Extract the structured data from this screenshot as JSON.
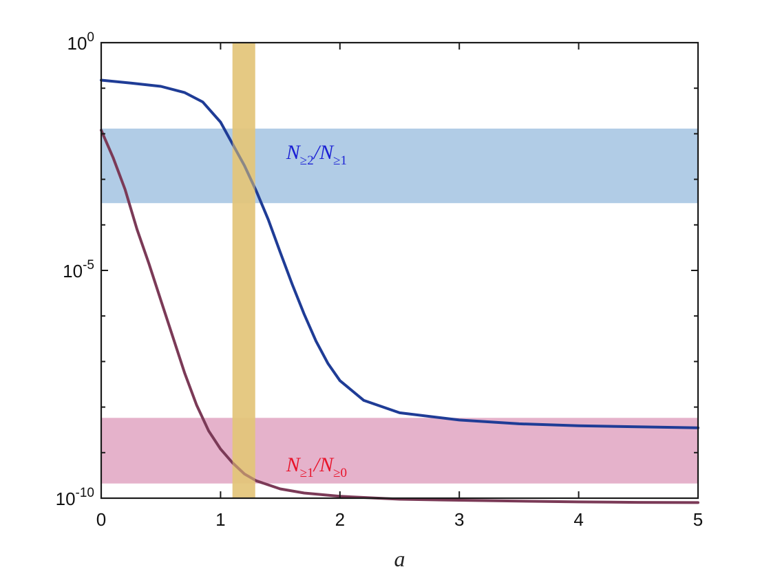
{
  "chart_data": {
    "type": "line",
    "xlabel": "a",
    "ylabel": "",
    "xlim": [
      0,
      5
    ],
    "ylim": [
      1e-10,
      1
    ],
    "yscale": "log",
    "grid": false,
    "x_ticks": [
      {
        "value": 0,
        "label": "0"
      },
      {
        "value": 1,
        "label": "1"
      },
      {
        "value": 2,
        "label": "2"
      },
      {
        "value": 3,
        "label": "3"
      },
      {
        "value": 4,
        "label": "4"
      },
      {
        "value": 5,
        "label": "5"
      }
    ],
    "y_ticks": [
      {
        "value": 1,
        "base": "10",
        "exp": "0"
      },
      {
        "value": 1e-05,
        "base": "10",
        "exp": "-5"
      },
      {
        "value": 1e-10,
        "base": "10",
        "exp": "-10"
      }
    ],
    "series": [
      {
        "color": "#1f3c96",
        "x": [
          0,
          0.25,
          0.5,
          0.7,
          0.85,
          1.0,
          1.1,
          1.2,
          1.3,
          1.4,
          1.5,
          1.6,
          1.7,
          1.8,
          1.9,
          2.0,
          2.2,
          2.5,
          3.0,
          3.5,
          4.0,
          5.0
        ],
        "y": [
          0.15,
          0.13,
          0.11,
          0.08,
          0.05,
          0.018,
          0.006,
          0.002,
          0.00055,
          0.00013,
          2.5e-05,
          5e-06,
          1.1e-06,
          2.8e-07,
          9e-08,
          3.8e-08,
          1.4e-08,
          7.5e-09,
          5.2e-09,
          4.3e-09,
          3.9e-09,
          3.5e-09
        ]
      },
      {
        "color": "#7b3a57",
        "x": [
          0,
          0.1,
          0.2,
          0.3,
          0.4,
          0.5,
          0.6,
          0.7,
          0.8,
          0.9,
          1.0,
          1.1,
          1.2,
          1.3,
          1.5,
          1.7,
          2.0,
          2.5,
          3.0,
          3.5,
          4.0,
          4.5,
          5.0
        ],
        "y": [
          0.012,
          0.003,
          0.0006,
          8e-05,
          1.4e-05,
          2.2e-06,
          3.5e-07,
          5.5e-08,
          1.1e-08,
          3e-09,
          1.2e-09,
          6e-10,
          3.4e-10,
          2.4e-10,
          1.6e-10,
          1.3e-10,
          1.1e-10,
          9.5e-11,
          9e-11,
          8.6e-11,
          8.3e-11,
          8.1e-11,
          8e-11
        ]
      }
    ],
    "bands": [
      {
        "orientation": "horizontal",
        "range": [
          0.0003,
          0.013
        ],
        "color": "#a9c6e3",
        "label_main": "N",
        "label_sub1": "≥2",
        "label_slash": "/",
        "label_main2": "N",
        "label_sub2": "≥1",
        "label_color": "#1a1fd4",
        "label_at": [
          1.55,
          0.0028
        ]
      },
      {
        "orientation": "horizontal",
        "range": [
          2.1e-10,
          5.8e-09
        ],
        "color": "#e2aac5",
        "label_main": "N",
        "label_sub1": "≥1",
        "label_slash": "/",
        "label_main2": "N",
        "label_sub2": "≥0",
        "label_color": "#e8132a",
        "label_at": [
          1.55,
          3.9e-10
        ]
      },
      {
        "orientation": "vertical",
        "range": [
          1.1,
          1.29
        ],
        "color": "#e3c57a"
      }
    ]
  }
}
